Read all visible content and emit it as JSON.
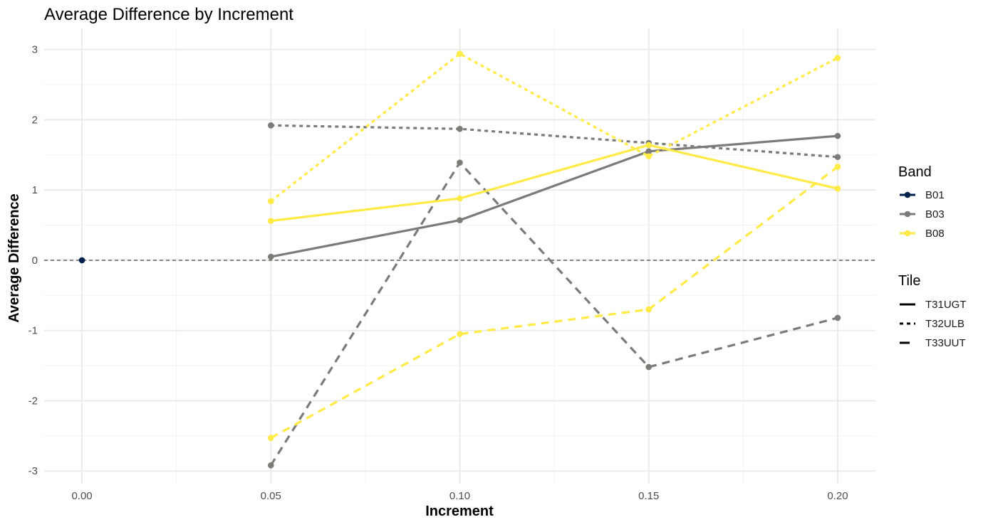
{
  "chart_data": {
    "type": "line",
    "title": "Average Difference by Increment",
    "xlabel": "Increment",
    "ylabel": "Average Difference",
    "xlim": [
      -0.01,
      0.21
    ],
    "ylim": [
      -3.18,
      3.3
    ],
    "x_ticks": [
      0.0,
      0.05,
      0.1,
      0.15,
      0.2
    ],
    "x_tick_labels": [
      "0.00",
      "0.05",
      "0.10",
      "0.15",
      "0.20"
    ],
    "y_ticks": [
      -3,
      -2,
      -1,
      0,
      1,
      2,
      3
    ],
    "y_tick_labels": [
      "-3",
      "-2",
      "-1",
      "0",
      "1",
      "2",
      "3"
    ],
    "grid": true,
    "reference_line": {
      "y": 0,
      "style": "dashed",
      "color": "#555555"
    },
    "legend_position": "right",
    "legend": {
      "band_title": "Band",
      "bands": [
        {
          "name": "B01",
          "color": "#00204d"
        },
        {
          "name": "B03",
          "color": "#7c7b78"
        },
        {
          "name": "B08",
          "color": "#ffea46"
        }
      ],
      "tile_title": "Tile",
      "tiles": [
        {
          "name": "T31UGT",
          "dash": "solid"
        },
        {
          "name": "T32ULB",
          "dash": "dotted"
        },
        {
          "name": "T33UUT",
          "dash": "dashed"
        }
      ]
    },
    "series": [
      {
        "band": "B01",
        "tile": "T31UGT",
        "color": "#00204d",
        "dash": "solid",
        "points": [
          [
            0.0,
            0.0
          ]
        ]
      },
      {
        "band": "B03",
        "tile": "T31UGT",
        "color": "#7c7b78",
        "dash": "solid",
        "points": [
          [
            0.05,
            0.05
          ],
          [
            0.1,
            0.57
          ],
          [
            0.15,
            1.55
          ],
          [
            0.2,
            1.77
          ]
        ]
      },
      {
        "band": "B03",
        "tile": "T32ULB",
        "color": "#7c7b78",
        "dash": "dotted",
        "points": [
          [
            0.05,
            1.92
          ],
          [
            0.1,
            1.87
          ],
          [
            0.15,
            1.67
          ],
          [
            0.2,
            1.47
          ]
        ]
      },
      {
        "band": "B03",
        "tile": "T33UUT",
        "color": "#7c7b78",
        "dash": "dashed",
        "points": [
          [
            0.05,
            -2.92
          ],
          [
            0.1,
            1.39
          ],
          [
            0.15,
            -1.52
          ],
          [
            0.2,
            -0.82
          ]
        ]
      },
      {
        "band": "B08",
        "tile": "T31UGT",
        "color": "#ffea46",
        "dash": "solid",
        "points": [
          [
            0.05,
            0.56
          ],
          [
            0.1,
            0.88
          ],
          [
            0.15,
            1.64
          ],
          [
            0.2,
            1.02
          ]
        ]
      },
      {
        "band": "B08",
        "tile": "T32ULB",
        "color": "#ffea46",
        "dash": "dotted",
        "points": [
          [
            0.05,
            0.84
          ],
          [
            0.1,
            2.94
          ],
          [
            0.15,
            1.48
          ],
          [
            0.2,
            2.88
          ]
        ]
      },
      {
        "band": "B08",
        "tile": "T33UUT",
        "color": "#ffea46",
        "dash": "dashed",
        "points": [
          [
            0.05,
            -2.53
          ],
          [
            0.1,
            -1.05
          ],
          [
            0.15,
            -0.7
          ],
          [
            0.2,
            1.33
          ]
        ]
      }
    ]
  }
}
